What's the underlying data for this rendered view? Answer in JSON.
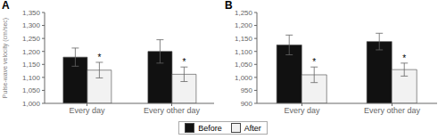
{
  "chart_data": [
    {
      "type": "bar",
      "title": "A",
      "y_label": "Pulse-wave velocity (cm/sec)",
      "categories": [
        "Every day",
        "Every other day"
      ],
      "series": [
        {
          "name": "Before",
          "color": "#111111",
          "values": [
            1178,
            1200
          ],
          "errors": [
            35,
            45
          ]
        },
        {
          "name": "After",
          "color": "#f2f2f2",
          "values": [
            1128,
            1112
          ],
          "errors": [
            30,
            28
          ],
          "annotations": [
            "*",
            "*"
          ]
        }
      ],
      "ylim": [
        1000,
        1350
      ],
      "yticks": [
        {
          "value": 1000,
          "label": "1,000"
        },
        {
          "value": 1050,
          "label": "1,050"
        },
        {
          "value": 1100,
          "label": "1,100"
        },
        {
          "value": 1150,
          "label": "1,150"
        },
        {
          "value": 1200,
          "label": "1,200"
        },
        {
          "value": 1250,
          "label": "1,250"
        },
        {
          "value": 1300,
          "label": "1,300"
        },
        {
          "value": 1350,
          "label": "1,350"
        }
      ],
      "legend": "lower center"
    },
    {
      "type": "bar",
      "title": "B",
      "categories": [
        "Every day",
        "Every other day"
      ],
      "series": [
        {
          "name": "Before",
          "color": "#111111",
          "values": [
            1125,
            1138
          ],
          "errors": [
            38,
            32
          ]
        },
        {
          "name": "After",
          "color": "#f2f2f2",
          "values": [
            1010,
            1030
          ],
          "errors": [
            30,
            25
          ],
          "annotations": [
            "*",
            "*"
          ]
        }
      ],
      "ylim": [
        900,
        1250
      ],
      "yticks": [
        900,
        950,
        {
          "value": 1000,
          "label": "1,000"
        },
        {
          "value": 1050,
          "label": "1,050"
        },
        {
          "value": 1100,
          "label": "1,100"
        },
        {
          "value": 1150,
          "label": "1,150"
        },
        {
          "value": 1200,
          "label": "1,200"
        },
        {
          "value": 1250,
          "label": "1,250"
        }
      ]
    }
  ]
}
